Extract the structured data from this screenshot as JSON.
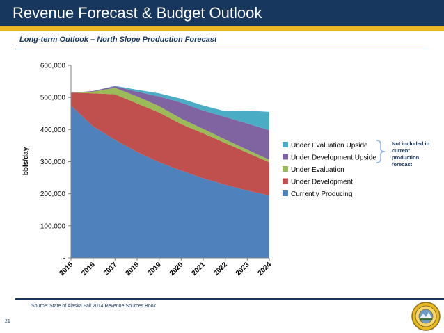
{
  "header": {
    "title": "Revenue Forecast & Budget Outlook",
    "subtitle": "Long-term Outlook – North Slope Production Forecast"
  },
  "footer": {
    "source": "Source: State of Alaska Fall 2014 Revenue Sources Book",
    "page_number": "21"
  },
  "annotation": {
    "lines": [
      "Not included in",
      "current",
      "production",
      "forecast"
    ],
    "color": "#17375e"
  },
  "colors": {
    "header_bar": "#17375e",
    "accent_bar": "#e8b923"
  },
  "chart_data": {
    "type": "area",
    "stacked": true,
    "x": [
      "2015",
      "2016",
      "2017",
      "2018",
      "2019",
      "2020",
      "2021",
      "2022",
      "2023",
      "2024"
    ],
    "ylabel": "bbls/day",
    "xlabel": "",
    "ylim": [
      0,
      600000
    ],
    "yticks": [
      0,
      100000,
      200000,
      300000,
      400000,
      500000,
      600000
    ],
    "ytick_labels": [
      "-",
      "100,000",
      "200,000",
      "300,000",
      "400,000",
      "500,000",
      "600,000"
    ],
    "grid": false,
    "legend_position": "right",
    "series": [
      {
        "name": "Currently Producing",
        "color": "#4f81bd",
        "values": [
          475000,
          410000,
          368000,
          330000,
          298000,
          272000,
          248000,
          228000,
          210000,
          195000
        ]
      },
      {
        "name": "Under Development",
        "color": "#c0504d",
        "values": [
          40000,
          103000,
          142000,
          151000,
          155000,
          145000,
          140000,
          130000,
          118000,
          103000
        ]
      },
      {
        "name": "Under Evaluation",
        "color": "#9bbb59",
        "values": [
          0,
          5000,
          20000,
          22000,
          20000,
          17000,
          14000,
          11000,
          9000,
          8000
        ]
      },
      {
        "name": "Under Development Upside",
        "color": "#8064a2",
        "values": [
          0,
          2000,
          5000,
          15000,
          30000,
          50000,
          57000,
          70000,
          82000,
          92000
        ]
      },
      {
        "name": "Under Evaluation Upside",
        "color": "#4bacc6",
        "values": [
          0,
          0,
          1000,
          6000,
          10000,
          12000,
          16000,
          18000,
          40000,
          57000
        ]
      }
    ],
    "legend_order": [
      "Under Evaluation Upside",
      "Under Development Upside",
      "Under Evaluation",
      "Under Development",
      "Currently Producing"
    ]
  }
}
